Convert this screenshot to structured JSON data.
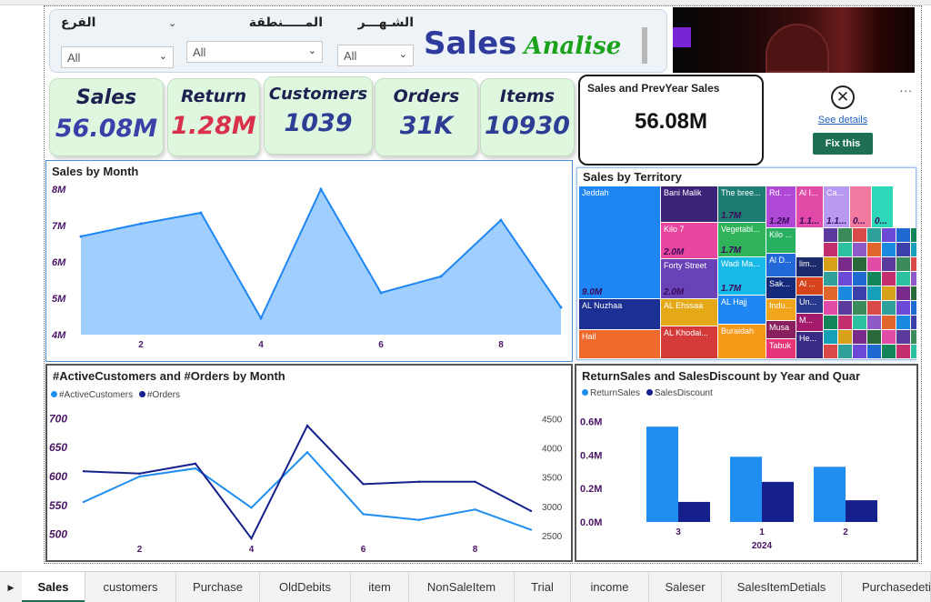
{
  "filters": {
    "branch": {
      "label": "الفرع",
      "value": "All"
    },
    "region": {
      "label": "المـــــنطقة",
      "value": "All"
    },
    "month": {
      "label": "الشـهـــر",
      "value": "All"
    }
  },
  "header": {
    "title_main": "Sales",
    "title_sub": "Analise"
  },
  "kpis": [
    {
      "label": "Sales",
      "value": "56.08M",
      "color": "#3b3fa8"
    },
    {
      "label": "Return",
      "value": "1.28M",
      "color": "#d9304b"
    },
    {
      "label": "Customers",
      "value": "1039",
      "color": "#2d3e94"
    },
    {
      "label": "Orders",
      "value": "31K",
      "color": "#2d3e94"
    },
    {
      "label": "Items",
      "value": "10930",
      "color": "#2d3e94"
    }
  ],
  "prev_year_card": {
    "title": "Sales and PrevYear Sales",
    "value": "56.08M"
  },
  "error_visual": {
    "see_details": "See details",
    "fix_label": "Fix this",
    "more": "..."
  },
  "chart_data": [
    {
      "type": "area",
      "title": "Sales by Month",
      "x": [
        1,
        2,
        3,
        4,
        5,
        6,
        7,
        8,
        9
      ],
      "xticks": [
        "2",
        "4",
        "6",
        "8"
      ],
      "yticks": [
        "8M",
        "7M",
        "6M",
        "5M",
        "4M"
      ],
      "series": [
        {
          "values": [
            6.7,
            7.05,
            7.35,
            4.45,
            8.0,
            5.15,
            5.6,
            7.15,
            4.75
          ]
        }
      ],
      "ylim": [
        4,
        8
      ],
      "grid": false,
      "color": "#8ec5ff"
    },
    {
      "type": "treemap",
      "title": "Sales by Territory",
      "tiles": [
        {
          "name": "Jeddah",
          "value": "9.0M",
          "color": "#1e86f2"
        },
        {
          "name": "AL Nuzhaa",
          "value": "",
          "color": "#1c2f93"
        },
        {
          "name": "Hail",
          "value": "",
          "color": "#ef6a2c"
        },
        {
          "name": "Bani Malik",
          "value": "",
          "color": "#3b2377"
        },
        {
          "name": "Kilo 7",
          "value": "2.0M",
          "color": "#e8459e"
        },
        {
          "name": "Forty Street",
          "value": "2.0M",
          "color": "#6a42b8"
        },
        {
          "name": "AL Ehssaa",
          "value": "",
          "color": "#e5a817"
        },
        {
          "name": "AL Khodai...",
          "value": "",
          "color": "#d43a3a"
        },
        {
          "name": "The bree...",
          "value": "1.7M",
          "color": "#1d7d73"
        },
        {
          "name": "Vegetabl...",
          "value": "1.7M",
          "color": "#2fb45a"
        },
        {
          "name": "Wadi Ma...",
          "value": "1.7M",
          "color": "#17b9e6"
        },
        {
          "name": "AL Hajj",
          "value": "",
          "color": "#1f86f2"
        },
        {
          "name": "Buraidah",
          "value": "",
          "color": "#f59a18"
        },
        {
          "name": "Rd. ...",
          "value": "1.2M",
          "color": "#b04ad6"
        },
        {
          "name": "Kilo ...",
          "value": "",
          "color": "#27b060"
        },
        {
          "name": "Al D...",
          "value": "",
          "color": "#2169d8"
        },
        {
          "name": "Sak...",
          "value": "",
          "color": "#152a7a"
        },
        {
          "name": "Indu...",
          "value": "",
          "color": "#f0a51c"
        },
        {
          "name": "Musa",
          "value": "",
          "color": "#8a1f5e"
        },
        {
          "name": "Tabuk",
          "value": "",
          "color": "#e8357a"
        },
        {
          "name": "Al I...",
          "value": "1.1...",
          "color": "#e24aa8"
        },
        {
          "name": "Ca...",
          "value": "1.1...",
          "color": "#b99af2"
        },
        {
          "name": "",
          "value": "0...",
          "color": "#f27aa0"
        },
        {
          "name": "",
          "value": "0...",
          "color": "#2dd8b8"
        },
        {
          "name": "lim...",
          "value": "",
          "color": "#1a2a6b"
        },
        {
          "name": "Al ...",
          "value": "",
          "color": "#d6441c"
        },
        {
          "name": "Un...",
          "value": "",
          "color": "#283a8e"
        },
        {
          "name": "M...",
          "value": "",
          "color": "#a31a6a"
        },
        {
          "name": "He...",
          "value": "",
          "color": "#3a2a85"
        }
      ]
    },
    {
      "type": "line",
      "title": "#ActiveCustomers and #Orders by Month",
      "x": [
        1,
        2,
        3,
        4,
        5,
        6,
        7,
        8,
        9
      ],
      "xticks": [
        "2",
        "4",
        "6",
        "8"
      ],
      "yticks_left": [
        "700",
        "650",
        "600",
        "550",
        "500"
      ],
      "yticks_right": [
        "4500",
        "4000",
        "3500",
        "3000",
        "2500"
      ],
      "series": [
        {
          "name": "#ActiveCustomers",
          "values": [
            556,
            600,
            614,
            546,
            642,
            535,
            525,
            543,
            508
          ],
          "color": "#1f8ef0",
          "axis": "left"
        },
        {
          "name": "#Orders",
          "values": [
            3600,
            3560,
            3730,
            2450,
            4380,
            3380,
            3420,
            3420,
            2920
          ],
          "color": "#16208c",
          "axis": "right"
        }
      ],
      "ylim": [
        490,
        710
      ],
      "ylim_right": [
        2420,
        4600
      ]
    },
    {
      "type": "bar",
      "title": "ReturnSales and SalesDiscount by Year and Quar",
      "categories": [
        "3",
        "1",
        "2"
      ],
      "group_label": "2024",
      "yticks": [
        "0.6M",
        "0.4M",
        "0.2M",
        "0.0M"
      ],
      "series": [
        {
          "name": "ReturnSales",
          "values": [
            0.57,
            0.39,
            0.33
          ],
          "color": "#1f8ef0"
        },
        {
          "name": "SalesDiscount",
          "values": [
            0.12,
            0.24,
            0.13
          ],
          "color": "#16208c"
        }
      ],
      "ylim": [
        0,
        0.62
      ]
    }
  ],
  "tabs": [
    "Sales",
    "customers",
    "Purchase",
    "OldDebits",
    "item",
    "NonSaleItem",
    "Trial",
    "income",
    "Saleser",
    "SalesItemDetials",
    "Purchasedetia"
  ],
  "tab_nav_icon": "play-right-icon"
}
